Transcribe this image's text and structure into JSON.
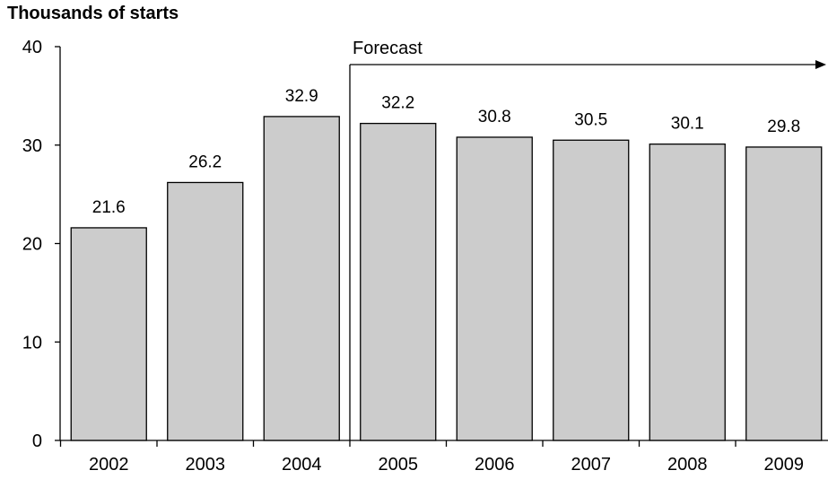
{
  "chart_data": {
    "type": "bar",
    "title": "Thousands of starts",
    "xlabel": "",
    "ylabel": "",
    "ylim": [
      0,
      40
    ],
    "yticks": [
      0,
      10,
      20,
      30,
      40
    ],
    "categories": [
      "2002",
      "2003",
      "2004",
      "2005",
      "2006",
      "2007",
      "2008",
      "2009"
    ],
    "values": [
      21.6,
      26.2,
      32.9,
      32.2,
      30.8,
      30.5,
      30.1,
      29.8
    ],
    "value_labels": [
      "21.6",
      "26.2",
      "32.9",
      "32.2",
      "30.8",
      "30.5",
      "30.1",
      "29.8"
    ],
    "annotation": {
      "text": "Forecast",
      "starts_at_category": "2005"
    },
    "grid": false,
    "legend": "none",
    "colors": {
      "bar_fill": "#cccccc",
      "bar_stroke": "#000000",
      "axis": "#000000"
    }
  }
}
